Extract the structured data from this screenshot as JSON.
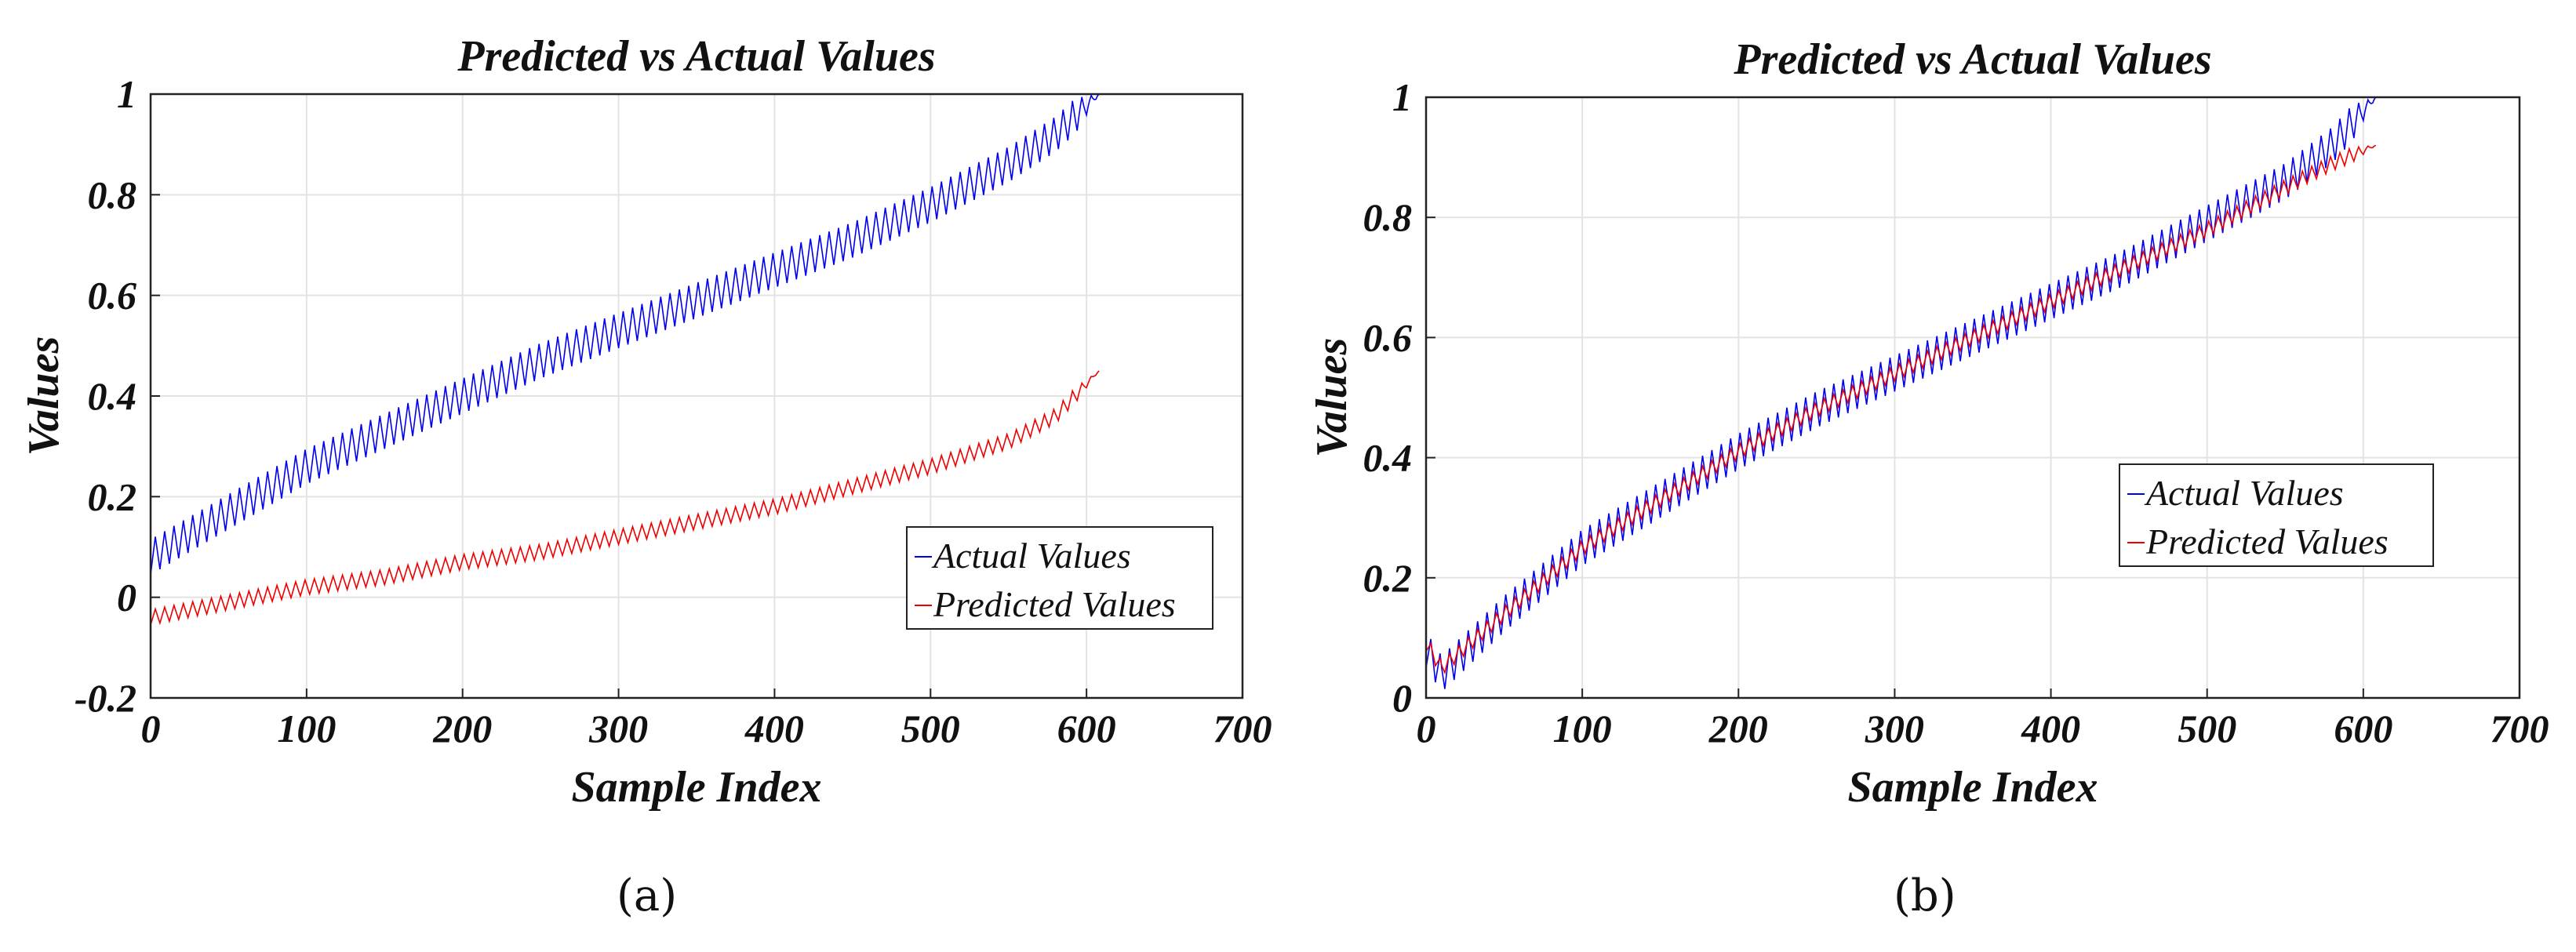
{
  "chart_data": [
    {
      "panel": "a",
      "type": "line",
      "title": "Predicted vs Actual Values",
      "xlabel": "Sample Index",
      "ylabel": "Values",
      "xlim": [
        0,
        700
      ],
      "ylim": [
        -0.2,
        1
      ],
      "xticks": [
        0,
        100,
        200,
        300,
        400,
        500,
        600,
        700
      ],
      "xtick_labels": [
        "0",
        "100",
        "200",
        "300",
        "400",
        "500",
        "600",
        "700"
      ],
      "yticks": [
        -0.2,
        0,
        0.2,
        0.4,
        0.6,
        0.8,
        1
      ],
      "ytick_labels": [
        "-0.2",
        "0",
        "0.2",
        "0.4",
        "0.6",
        "0.8",
        "1"
      ],
      "grid": true,
      "legend_position": "lower-right",
      "series": [
        {
          "name": "Actual Values",
          "color": "#0000ee",
          "x": [
            0,
            50,
            100,
            150,
            200,
            250,
            300,
            350,
            400,
            450,
            500,
            550,
            580,
            608
          ],
          "y": [
            0.08,
            0.17,
            0.26,
            0.33,
            0.4,
            0.47,
            0.53,
            0.59,
            0.65,
            0.71,
            0.78,
            0.86,
            0.92,
            1.0
          ],
          "oscillation_amplitude": 0.07
        },
        {
          "name": "Predicted Values",
          "color": "#ee0000",
          "x": [
            0,
            50,
            100,
            150,
            200,
            250,
            300,
            350,
            400,
            450,
            500,
            550,
            580,
            608
          ],
          "y": [
            -0.04,
            -0.01,
            0.02,
            0.04,
            0.07,
            0.09,
            0.12,
            0.15,
            0.18,
            0.22,
            0.26,
            0.31,
            0.36,
            0.45
          ],
          "oscillation_amplitude": 0.03
        }
      ]
    },
    {
      "panel": "b",
      "type": "line",
      "title": "Predicted vs Actual Values",
      "xlabel": "Sample Index",
      "ylabel": "Values",
      "xlim": [
        0,
        700
      ],
      "ylim": [
        0,
        1
      ],
      "xticks": [
        0,
        100,
        200,
        300,
        400,
        500,
        600,
        700
      ],
      "xtick_labels": [
        "0",
        "100",
        "200",
        "300",
        "400",
        "500",
        "600",
        "700"
      ],
      "yticks": [
        0,
        0.2,
        0.4,
        0.6,
        0.8,
        1
      ],
      "ytick_labels": [
        "0",
        "0.2",
        "0.4",
        "0.6",
        "0.8",
        "1"
      ],
      "grid": true,
      "legend_position": "right",
      "series": [
        {
          "name": "Actual Values",
          "color": "#0000ee",
          "x": [
            0,
            10,
            50,
            100,
            150,
            200,
            250,
            300,
            350,
            400,
            450,
            500,
            550,
            580,
            608
          ],
          "y": [
            0.08,
            0.04,
            0.14,
            0.25,
            0.33,
            0.41,
            0.48,
            0.54,
            0.6,
            0.66,
            0.72,
            0.79,
            0.86,
            0.92,
            1.0
          ],
          "oscillation_amplitude": 0.06
        },
        {
          "name": "Predicted Values",
          "color": "#ee0000",
          "x": [
            0,
            10,
            50,
            100,
            150,
            200,
            250,
            300,
            350,
            400,
            450,
            500,
            550,
            580,
            608
          ],
          "y": [
            0.09,
            0.05,
            0.14,
            0.25,
            0.33,
            0.41,
            0.48,
            0.54,
            0.6,
            0.66,
            0.72,
            0.78,
            0.85,
            0.89,
            0.92
          ],
          "oscillation_amplitude": 0.025
        }
      ]
    }
  ],
  "captions": {
    "a": "(a)",
    "b": "(b)"
  }
}
